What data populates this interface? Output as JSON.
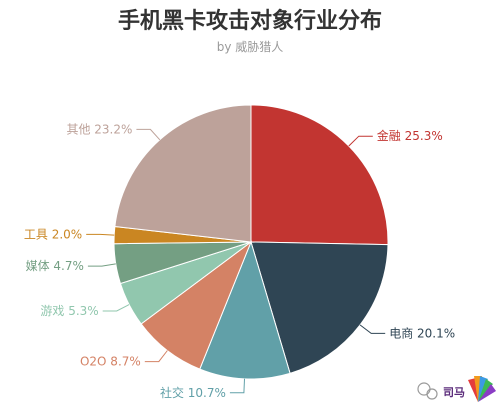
{
  "chart_data": {
    "type": "pie",
    "title": "手机黑卡攻击对象行业分布",
    "subtitle": "by 威胁猎人",
    "slices": [
      {
        "label": "金融",
        "value": 25.3,
        "display": "金融 25.3%",
        "color": "#c23531"
      },
      {
        "label": "电商",
        "value": 20.1,
        "display": "电商 20.1%",
        "color": "#2f4554"
      },
      {
        "label": "社交",
        "value": 10.7,
        "display": "社交 10.7%",
        "color": "#61a0a8"
      },
      {
        "label": "O2O",
        "value": 8.7,
        "display": "O2O 8.7%",
        "color": "#d48265"
      },
      {
        "label": "游戏",
        "value": 5.3,
        "display": "游戏 5.3%",
        "color": "#91c7ae"
      },
      {
        "label": "媒体",
        "value": 4.7,
        "display": "媒体 4.7%",
        "color": "#749f83"
      },
      {
        "label": "工具",
        "value": 2.0,
        "display": "工具 2.0%",
        "color": "#ca8622"
      },
      {
        "label": "其他",
        "value": 23.2,
        "display": "其他 23.2%",
        "color": "#bda29a"
      }
    ]
  },
  "watermark": {
    "icon": "wechat-icon",
    "text": "司马"
  }
}
